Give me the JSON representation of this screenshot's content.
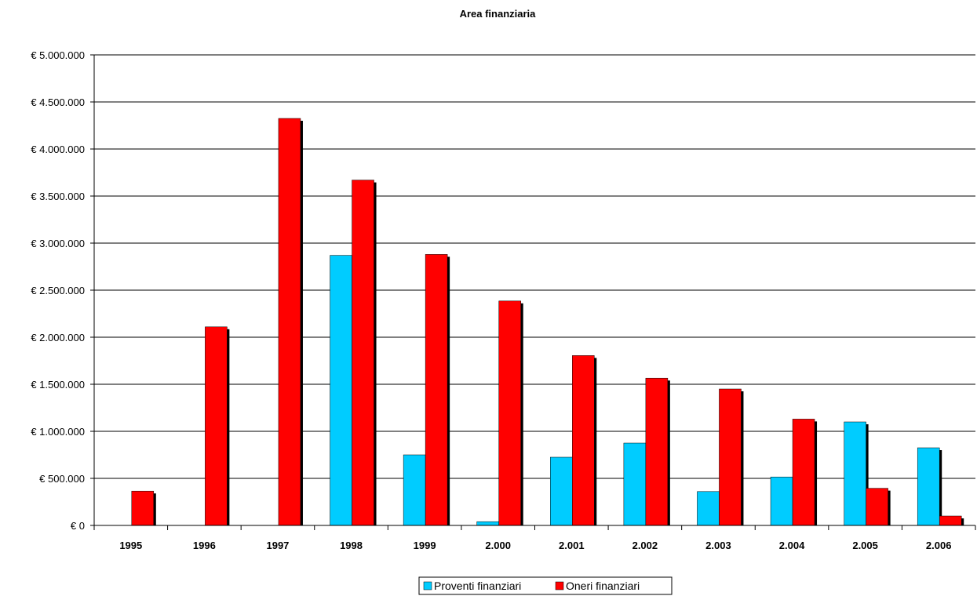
{
  "chart_data": {
    "type": "bar",
    "title": "Area finanziaria",
    "xlabel": "",
    "ylabel": "",
    "categories": [
      "1995",
      "1996",
      "1997",
      "1998",
      "1999",
      "2.000",
      "2.001",
      "2.002",
      "2.003",
      "2.004",
      "2.005",
      "2.006"
    ],
    "series": [
      {
        "name": "Proventi finanziari",
        "color": "#00CCFF",
        "values": [
          0,
          0,
          0,
          2870000,
          750000,
          40000,
          725000,
          875000,
          360000,
          515000,
          1100000,
          825000
        ]
      },
      {
        "name": "Oneri finanziari",
        "color": "#FF0000",
        "values": [
          365000,
          2110000,
          4325000,
          3670000,
          2880000,
          2385000,
          1805000,
          1565000,
          1450000,
          1130000,
          395000,
          100000
        ]
      }
    ],
    "ylim": [
      0,
      5000000
    ],
    "yticks": [
      0,
      500000,
      1000000,
      1500000,
      2000000,
      2500000,
      3000000,
      3500000,
      4000000,
      4500000,
      5000000
    ],
    "ytick_labels": [
      "€ 0",
      "€ 500.000",
      "€ 1.000.000",
      "€ 1.500.000",
      "€ 2.000.000",
      "€ 2.500.000",
      "€ 3.000.000",
      "€ 3.500.000",
      "€ 4.000.000",
      "€ 4.500.000",
      "€ 5.000.000"
    ],
    "grid": true,
    "legend": "bottom-center"
  }
}
